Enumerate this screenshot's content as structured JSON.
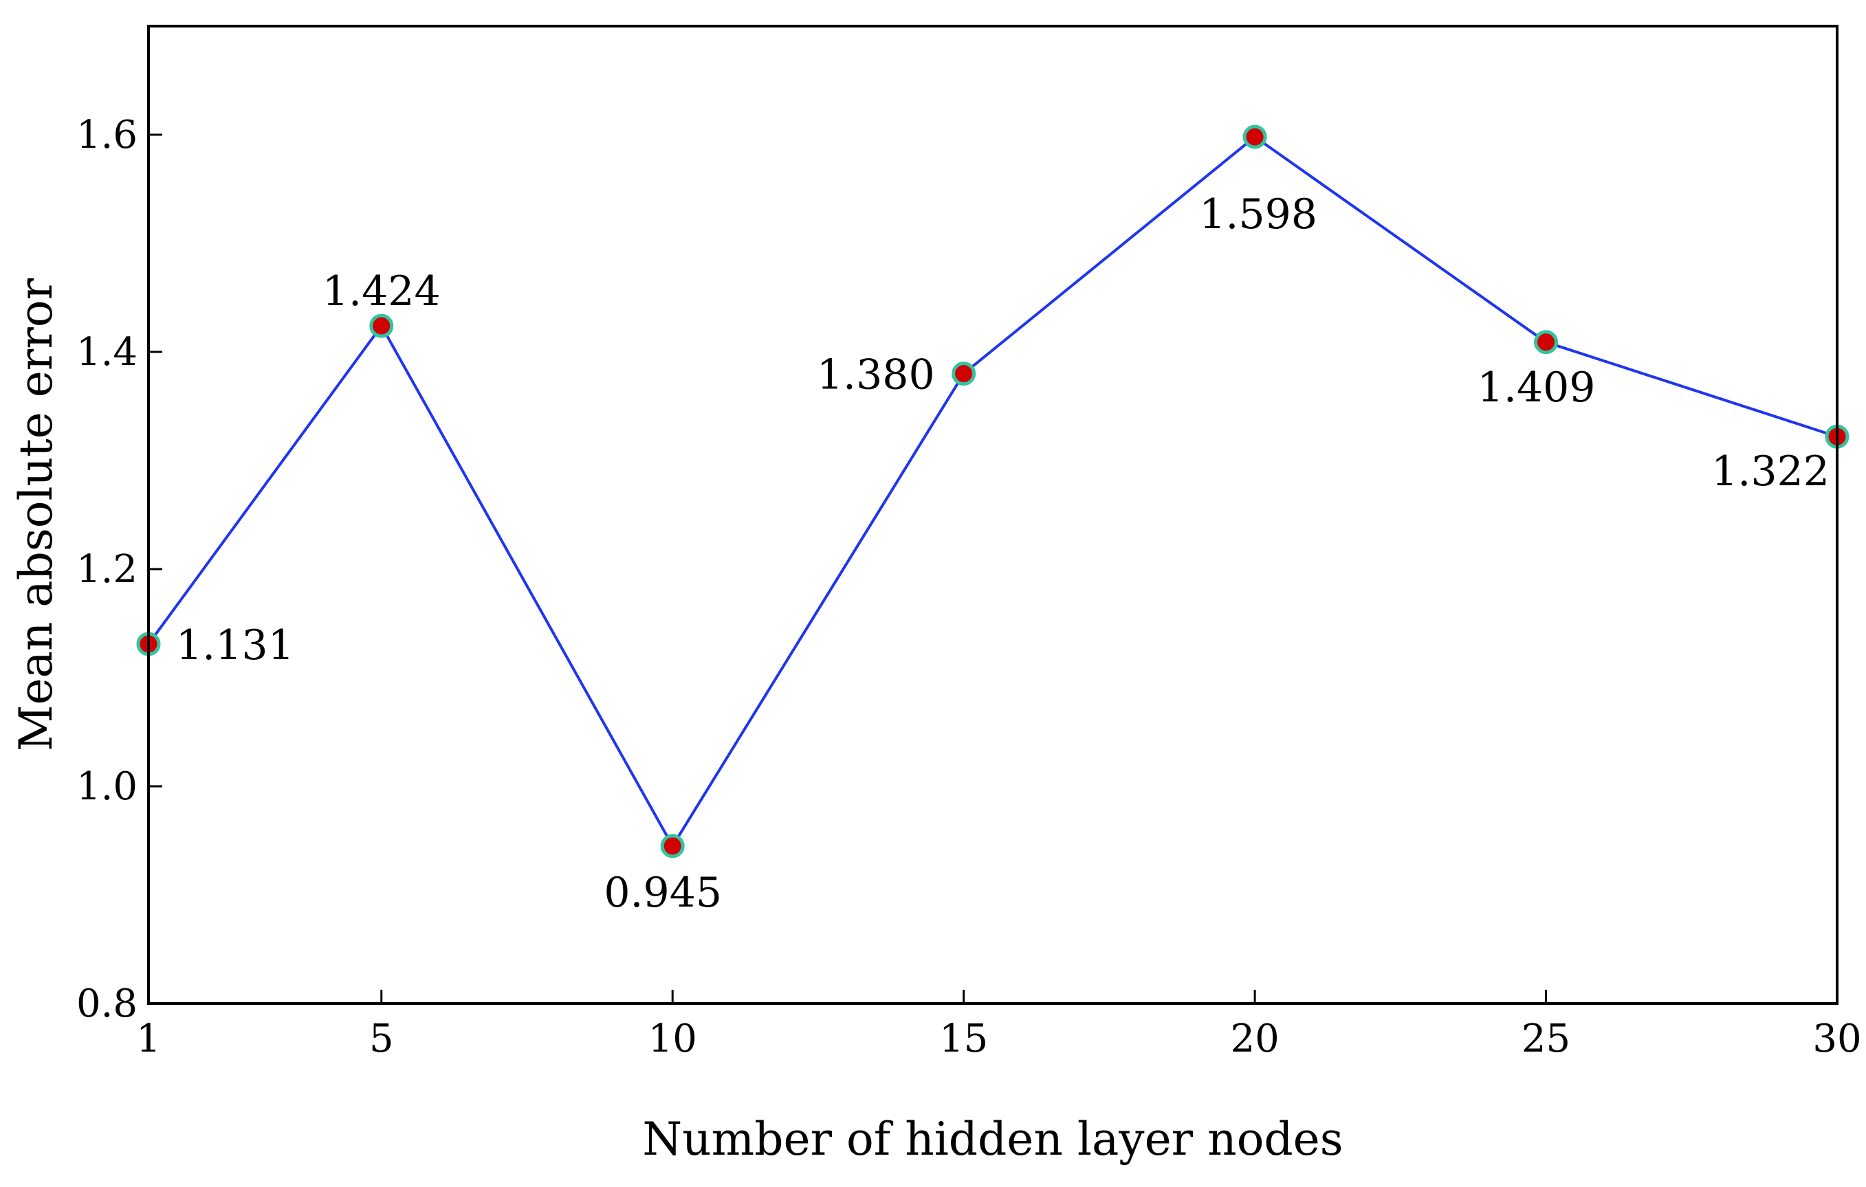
{
  "chart_data": {
    "type": "line",
    "title": "",
    "xlabel": "Number of hidden layer nodes",
    "ylabel": "Mean absolute error",
    "x": [
      1,
      5,
      10,
      15,
      20,
      25,
      30
    ],
    "series": [
      {
        "values": [
          1.131,
          1.424,
          0.945,
          1.38,
          1.598,
          1.409,
          1.322
        ],
        "data_labels": [
          "1.131",
          "1.424",
          "0.945",
          "1.380",
          "1.598",
          "1.409",
          "1.322"
        ]
      }
    ],
    "xticks": [
      1,
      5,
      10,
      15,
      20,
      25,
      30
    ],
    "xtick_labels": [
      "1",
      "5",
      "10",
      "15",
      "20",
      "25",
      "30"
    ],
    "yticks": [
      0.8,
      1.0,
      1.2,
      1.4,
      1.6
    ],
    "ytick_labels": [
      "0.8",
      "1.0",
      "1.2",
      "1.4",
      "1.6"
    ],
    "xlim": [
      1,
      30
    ],
    "ylim": [
      0.8,
      1.7
    ],
    "grid": false,
    "legend": "none",
    "colors": {
      "line": "#1f35f2",
      "marker_fill": "#d00000",
      "marker_edge": "#33c3a0",
      "axes": "#000000"
    }
  }
}
